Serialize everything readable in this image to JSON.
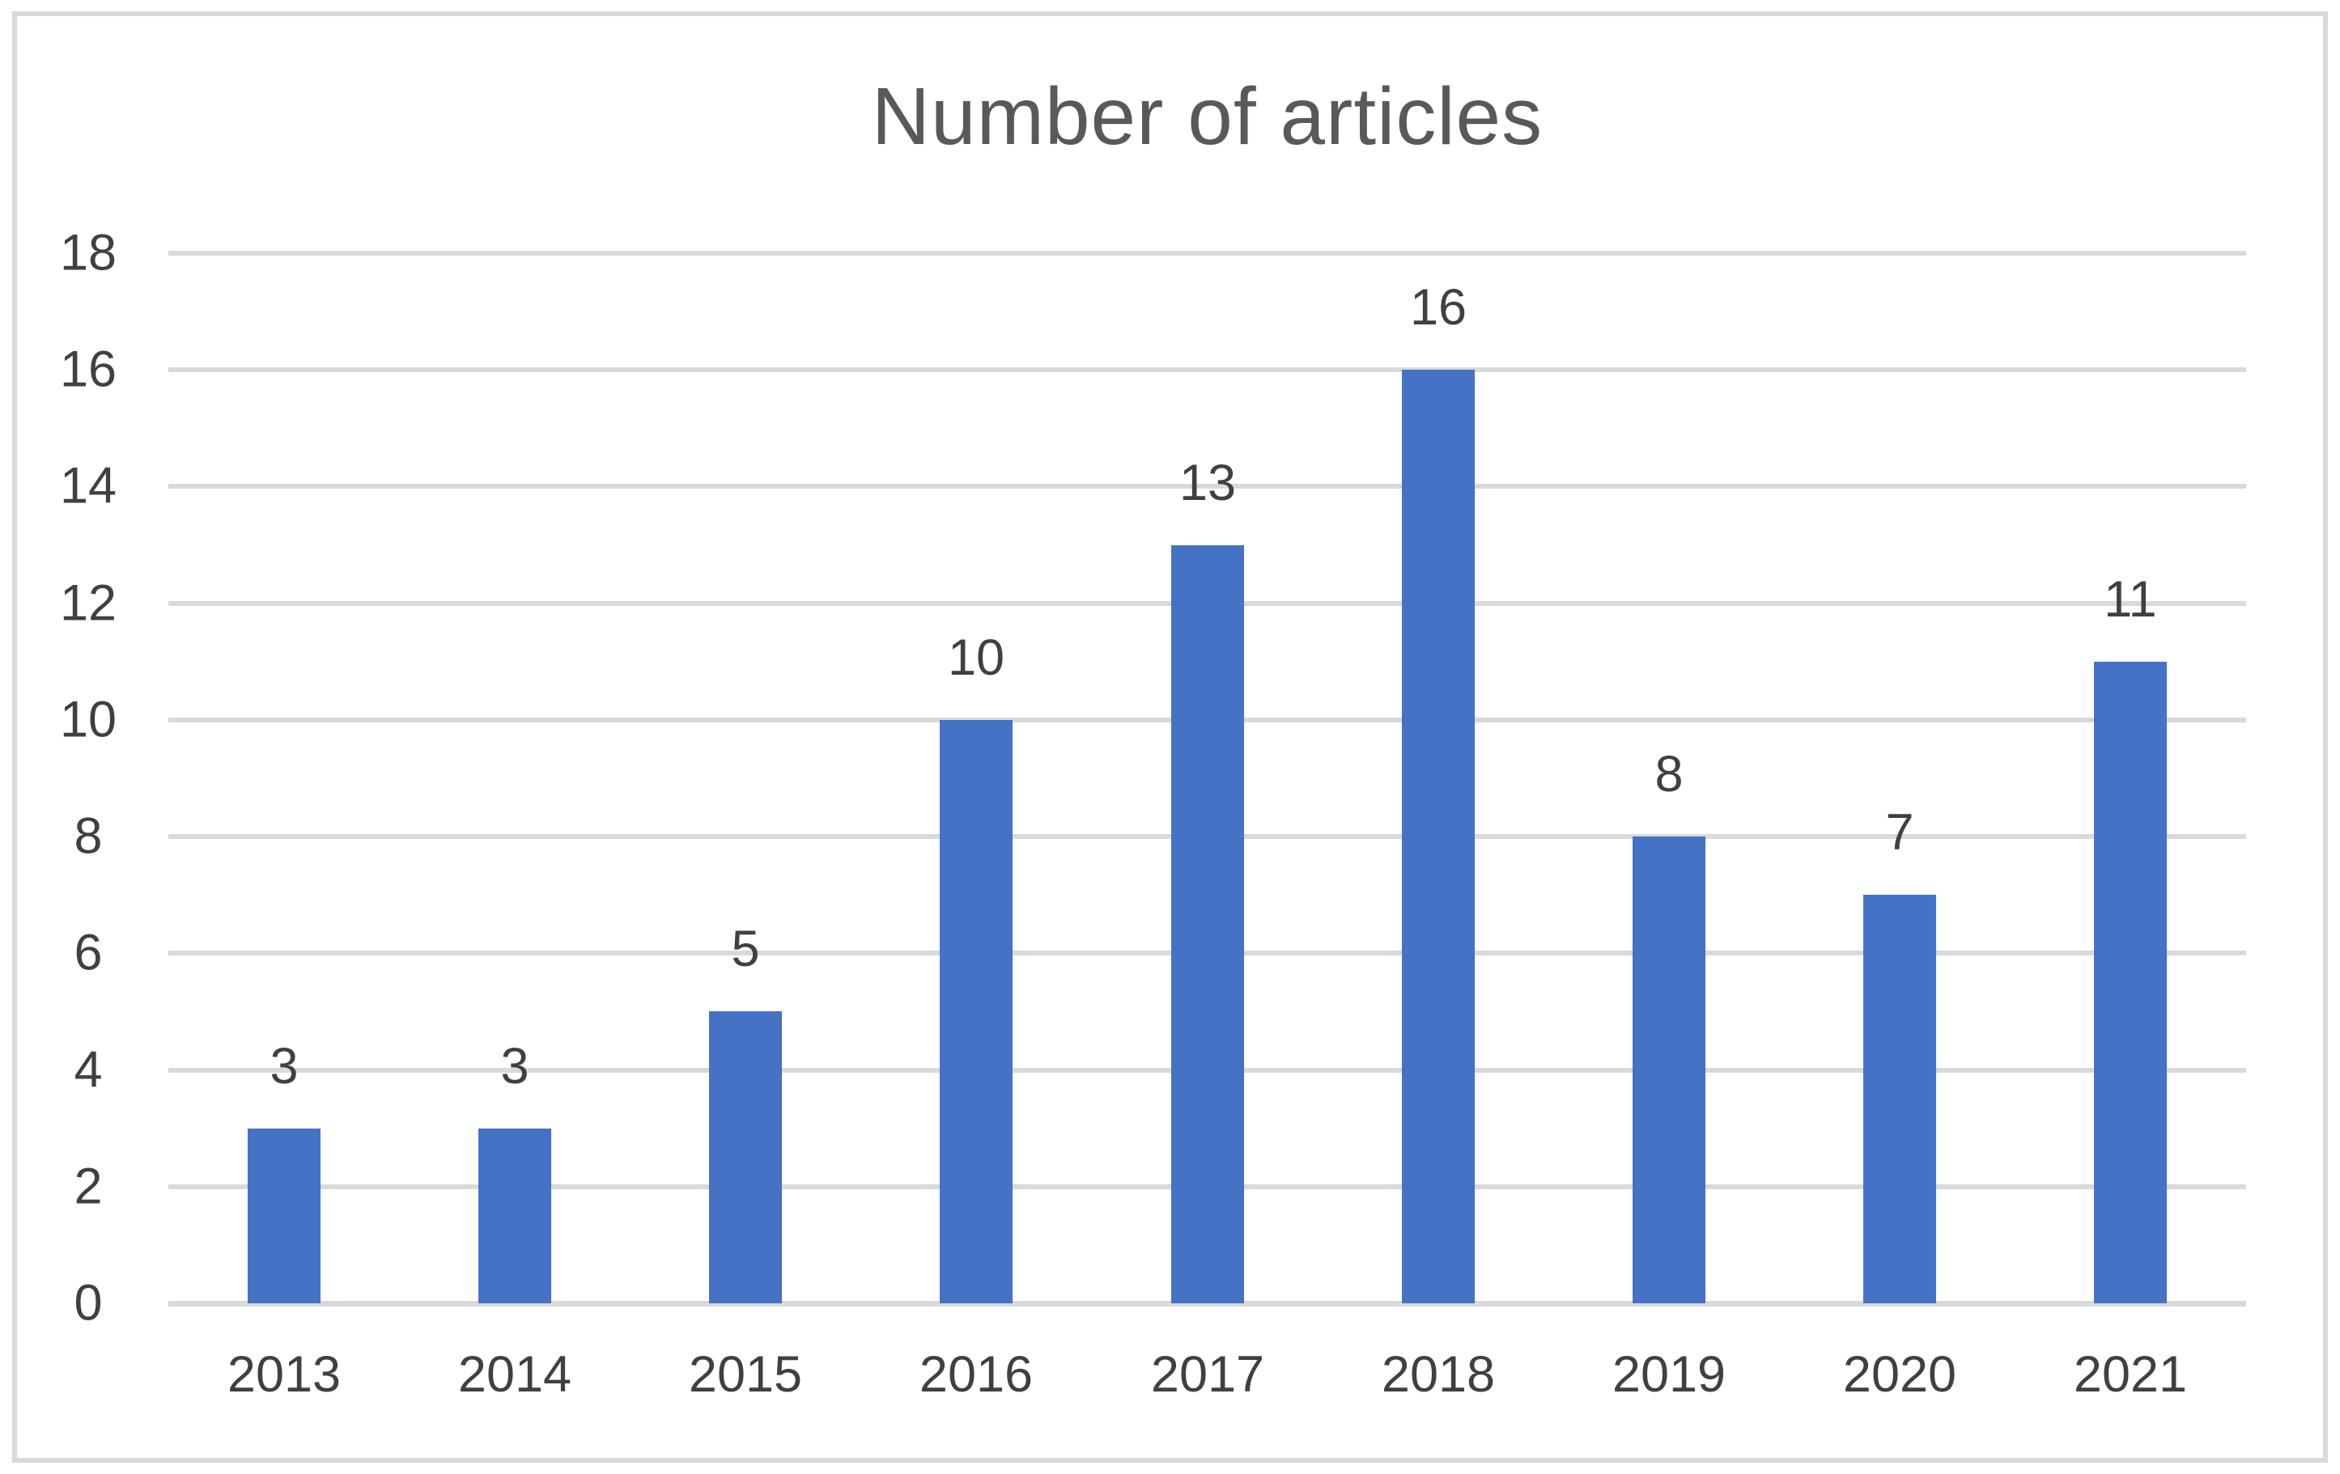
{
  "chart_data": {
    "type": "bar",
    "title": "Number of articles",
    "categories": [
      "2013",
      "2014",
      "2015",
      "2016",
      "2017",
      "2018",
      "2019",
      "2020",
      "2021"
    ],
    "values": [
      3,
      3,
      5,
      10,
      13,
      16,
      8,
      7,
      11
    ],
    "xlabel": "",
    "ylabel": "",
    "ylim": [
      0,
      18
    ],
    "ytick_step": 2,
    "yticks": [
      0,
      2,
      4,
      6,
      8,
      10,
      12,
      14,
      16,
      18
    ],
    "grid": "horizontal",
    "legend": "none",
    "show_data_labels": true
  },
  "style": {
    "bar_color": "#4472C4",
    "title_color": "#595959",
    "label_color": "#404040",
    "gridline_color": "#D9D9D9",
    "axis_line_color": "#D9D9D9",
    "frame_border_color": "#D9D9D9",
    "background": "#FFFFFF"
  }
}
